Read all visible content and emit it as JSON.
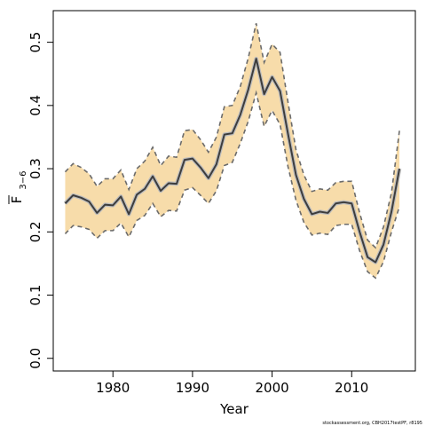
{
  "chart_data": {
    "type": "line",
    "xlabel": "Year",
    "ylabel": "F̅₃₋₆",
    "ylabel_main": "F",
    "ylabel_sub": "3−6",
    "xlim": [
      1972.5,
      2018
    ],
    "ylim": [
      -0.02,
      0.55
    ],
    "x_ticks": [
      1980,
      1990,
      2000,
      2010
    ],
    "y_ticks": [
      0.0,
      0.1,
      0.2,
      0.3,
      0.4,
      0.5
    ],
    "y_tick_labels": [
      "0.0",
      "0.1",
      "0.2",
      "0.3",
      "0.4",
      "0.5"
    ],
    "grid": false,
    "x": [
      1974,
      1975,
      1976,
      1977,
      1978,
      1979,
      1980,
      1981,
      1982,
      1983,
      1984,
      1985,
      1986,
      1987,
      1988,
      1989,
      1990,
      1991,
      1992,
      1993,
      1994,
      1995,
      1996,
      1997,
      1998,
      1999,
      2000,
      2001,
      2002,
      2003,
      2004,
      2005,
      2006,
      2007,
      2008,
      2009,
      2010,
      2011,
      2012,
      2013,
      2014,
      2015,
      2016
    ],
    "series": [
      {
        "role": "estimate",
        "color": "#3d3d3d",
        "values": [
          0.245,
          0.258,
          0.254,
          0.248,
          0.23,
          0.243,
          0.242,
          0.256,
          0.228,
          0.259,
          0.268,
          0.288,
          0.265,
          0.277,
          0.276,
          0.314,
          0.316,
          0.302,
          0.285,
          0.307,
          0.354,
          0.356,
          0.385,
          0.425,
          0.474,
          0.418,
          0.445,
          0.423,
          0.355,
          0.29,
          0.252,
          0.228,
          0.232,
          0.23,
          0.245,
          0.247,
          0.245,
          0.2,
          0.16,
          0.152,
          0.18,
          0.232,
          0.3
        ]
      },
      {
        "role": "upper-ci",
        "color": "#6b6b6b",
        "values": [
          0.295,
          0.308,
          0.302,
          0.292,
          0.272,
          0.284,
          0.284,
          0.298,
          0.267,
          0.3,
          0.312,
          0.334,
          0.305,
          0.32,
          0.318,
          0.36,
          0.362,
          0.346,
          0.326,
          0.35,
          0.398,
          0.4,
          0.43,
          0.475,
          0.53,
          0.468,
          0.497,
          0.484,
          0.405,
          0.33,
          0.29,
          0.264,
          0.268,
          0.266,
          0.278,
          0.28,
          0.28,
          0.23,
          0.187,
          0.175,
          0.208,
          0.262,
          0.36
        ]
      },
      {
        "role": "lower-ci",
        "color": "#6b6b6b",
        "values": [
          0.197,
          0.21,
          0.208,
          0.204,
          0.19,
          0.202,
          0.202,
          0.214,
          0.192,
          0.218,
          0.226,
          0.245,
          0.224,
          0.234,
          0.233,
          0.266,
          0.27,
          0.258,
          0.245,
          0.265,
          0.305,
          0.31,
          0.34,
          0.375,
          0.42,
          0.367,
          0.392,
          0.37,
          0.303,
          0.25,
          0.215,
          0.195,
          0.198,
          0.196,
          0.21,
          0.212,
          0.212,
          0.17,
          0.137,
          0.127,
          0.153,
          0.2,
          0.24
        ]
      }
    ],
    "band_color": "#f7dcaa",
    "footnote": "stockassessment.org, CBH2017testPF, r8195"
  }
}
